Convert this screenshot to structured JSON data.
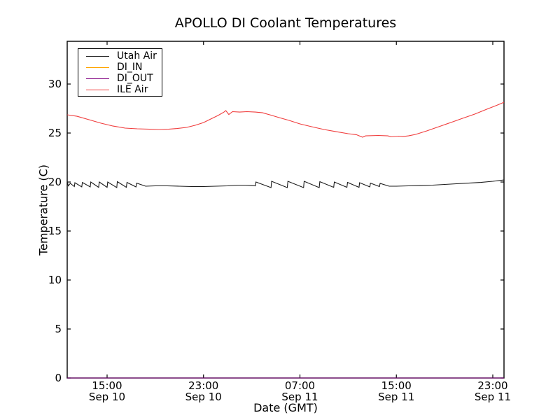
{
  "chart_data": {
    "type": "line",
    "title": "APOLLO DI Coolant Temperatures",
    "xlabel": "Date (GMT)",
    "ylabel": "Temperature (C)",
    "x_unit": "hours since Sep 10 00:00 GMT",
    "xlim": [
      11.69,
      47.93
    ],
    "ylim": [
      0,
      34.36
    ],
    "grid": false,
    "legend_position": "upper-left",
    "frame_color": "#000000",
    "x_ticks": [
      {
        "value": 15,
        "time": "15:00",
        "date": "Sep 10"
      },
      {
        "value": 23,
        "time": "23:00",
        "date": "Sep 10"
      },
      {
        "value": 31,
        "time": "07:00",
        "date": "Sep 11"
      },
      {
        "value": 39,
        "time": "15:00",
        "date": "Sep 11"
      },
      {
        "value": 47,
        "time": "23:00",
        "date": "Sep 11"
      }
    ],
    "y_ticks": [
      0,
      5,
      10,
      15,
      20,
      25,
      30
    ],
    "series": [
      {
        "name": "Utah Air",
        "color": "#1a1a1a",
        "points": [
          [
            11.69,
            20.11
          ],
          [
            11.78,
            19.61
          ],
          [
            11.95,
            19.86
          ],
          [
            12.28,
            19.54
          ],
          [
            12.33,
            19.93
          ],
          [
            12.9,
            19.5
          ],
          [
            12.95,
            19.96
          ],
          [
            13.6,
            19.5
          ],
          [
            13.65,
            20.0
          ],
          [
            14.3,
            19.46
          ],
          [
            14.35,
            20.0
          ],
          [
            15.0,
            19.46
          ],
          [
            15.05,
            20.0
          ],
          [
            15.8,
            19.43
          ],
          [
            15.85,
            20.04
          ],
          [
            16.6,
            19.46
          ],
          [
            16.65,
            19.96
          ],
          [
            17.4,
            19.5
          ],
          [
            17.45,
            19.89
          ],
          [
            18.2,
            19.57
          ],
          [
            19.0,
            19.61
          ],
          [
            20.0,
            19.61
          ],
          [
            21.0,
            19.57
          ],
          [
            22.0,
            19.54
          ],
          [
            23.0,
            19.54
          ],
          [
            24.0,
            19.57
          ],
          [
            25.0,
            19.61
          ],
          [
            25.8,
            19.68
          ],
          [
            26.5,
            19.68
          ],
          [
            27.0,
            19.64
          ],
          [
            27.3,
            19.61
          ],
          [
            27.35,
            20.0
          ],
          [
            28.6,
            19.43
          ],
          [
            28.65,
            20.07
          ],
          [
            29.95,
            19.43
          ],
          [
            30.0,
            20.07
          ],
          [
            31.3,
            19.43
          ],
          [
            31.35,
            20.07
          ],
          [
            32.6,
            19.43
          ],
          [
            32.65,
            20.04
          ],
          [
            33.8,
            19.46
          ],
          [
            33.85,
            20.0
          ],
          [
            34.9,
            19.46
          ],
          [
            34.95,
            19.96
          ],
          [
            35.9,
            19.46
          ],
          [
            35.95,
            19.93
          ],
          [
            36.8,
            19.5
          ],
          [
            36.85,
            19.89
          ],
          [
            37.6,
            19.54
          ],
          [
            37.65,
            19.86
          ],
          [
            38.4,
            19.57
          ],
          [
            39.0,
            19.57
          ],
          [
            40.0,
            19.61
          ],
          [
            41.0,
            19.64
          ],
          [
            42.0,
            19.68
          ],
          [
            43.0,
            19.75
          ],
          [
            44.0,
            19.82
          ],
          [
            45.0,
            19.89
          ],
          [
            46.0,
            19.96
          ],
          [
            47.0,
            20.07
          ],
          [
            47.93,
            20.21
          ]
        ]
      },
      {
        "name": "DI_IN",
        "color": "#ffa500",
        "points": [
          [
            11.69,
            0.0
          ],
          [
            47.93,
            0.0
          ]
        ]
      },
      {
        "name": "DI_OUT",
        "color": "#800080",
        "points": [
          [
            11.69,
            0.0
          ],
          [
            47.93,
            0.0
          ]
        ]
      },
      {
        "name": "ILE Air",
        "color": "#f03b3b",
        "points": [
          [
            11.69,
            26.86
          ],
          [
            12.5,
            26.71
          ],
          [
            13.5,
            26.36
          ],
          [
            14.5,
            26.0
          ],
          [
            15.5,
            25.71
          ],
          [
            16.5,
            25.5
          ],
          [
            17.5,
            25.43
          ],
          [
            18.5,
            25.39
          ],
          [
            19.3,
            25.36
          ],
          [
            20.1,
            25.39
          ],
          [
            20.8,
            25.46
          ],
          [
            21.6,
            25.57
          ],
          [
            22.3,
            25.79
          ],
          [
            23.0,
            26.07
          ],
          [
            23.6,
            26.43
          ],
          [
            24.2,
            26.79
          ],
          [
            24.7,
            27.14
          ],
          [
            24.85,
            27.29
          ],
          [
            25.1,
            26.89
          ],
          [
            25.4,
            27.18
          ],
          [
            26.0,
            27.14
          ],
          [
            26.6,
            27.18
          ],
          [
            27.3,
            27.14
          ],
          [
            27.9,
            27.07
          ],
          [
            28.5,
            26.86
          ],
          [
            29.3,
            26.57
          ],
          [
            30.1,
            26.29
          ],
          [
            31.0,
            25.93
          ],
          [
            32.0,
            25.64
          ],
          [
            33.0,
            25.36
          ],
          [
            34.0,
            25.14
          ],
          [
            35.0,
            24.93
          ],
          [
            35.7,
            24.82
          ],
          [
            36.2,
            24.57
          ],
          [
            36.45,
            24.71
          ],
          [
            37.5,
            24.75
          ],
          [
            38.3,
            24.71
          ],
          [
            38.55,
            24.61
          ],
          [
            39.2,
            24.68
          ],
          [
            39.55,
            24.64
          ],
          [
            40.0,
            24.71
          ],
          [
            40.6,
            24.86
          ],
          [
            41.5,
            25.21
          ],
          [
            42.5,
            25.64
          ],
          [
            43.5,
            26.07
          ],
          [
            44.5,
            26.5
          ],
          [
            45.5,
            26.93
          ],
          [
            46.5,
            27.43
          ],
          [
            47.3,
            27.82
          ],
          [
            47.93,
            28.14
          ]
        ]
      }
    ]
  }
}
